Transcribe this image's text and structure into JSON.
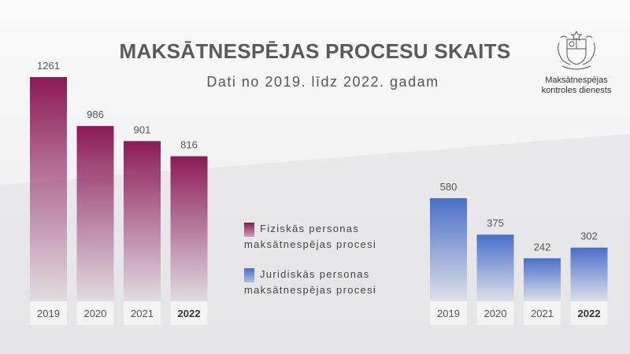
{
  "title": "MAKSĀTNESPĒJAS PROCESU SKAITS",
  "subtitle": "Dati no 2019. līdz 2022. gadam",
  "logo": {
    "icon": "latvian-coat-of-arms-icon",
    "line1": "Maksātnespējas",
    "line2": "kontroles dienests"
  },
  "legend": [
    {
      "line1": "Fiziskās personas",
      "line2": "maksātnespējas procesi",
      "color": "#8b1a55"
    },
    {
      "line1": "Juridiskās personas",
      "line2": "maksātnespējas procesi",
      "color": "#4a6fc9"
    }
  ],
  "chart_data": [
    {
      "type": "bar",
      "categories": [
        "2019",
        "2020",
        "2021",
        "2022"
      ],
      "series": [
        {
          "name": "Fiziskās personas maksātnespējas procesi",
          "values": [
            1261,
            986,
            901,
            816
          ]
        }
      ],
      "color": "#8b1a55",
      "highlight_category": "2022"
    },
    {
      "type": "bar",
      "categories": [
        "2019",
        "2020",
        "2021",
        "2022"
      ],
      "series": [
        {
          "name": "Juridiskās personas maksātnespējas procesi",
          "values": [
            580,
            375,
            242,
            302
          ]
        }
      ],
      "color": "#4a6fc9",
      "highlight_category": "2022"
    }
  ]
}
